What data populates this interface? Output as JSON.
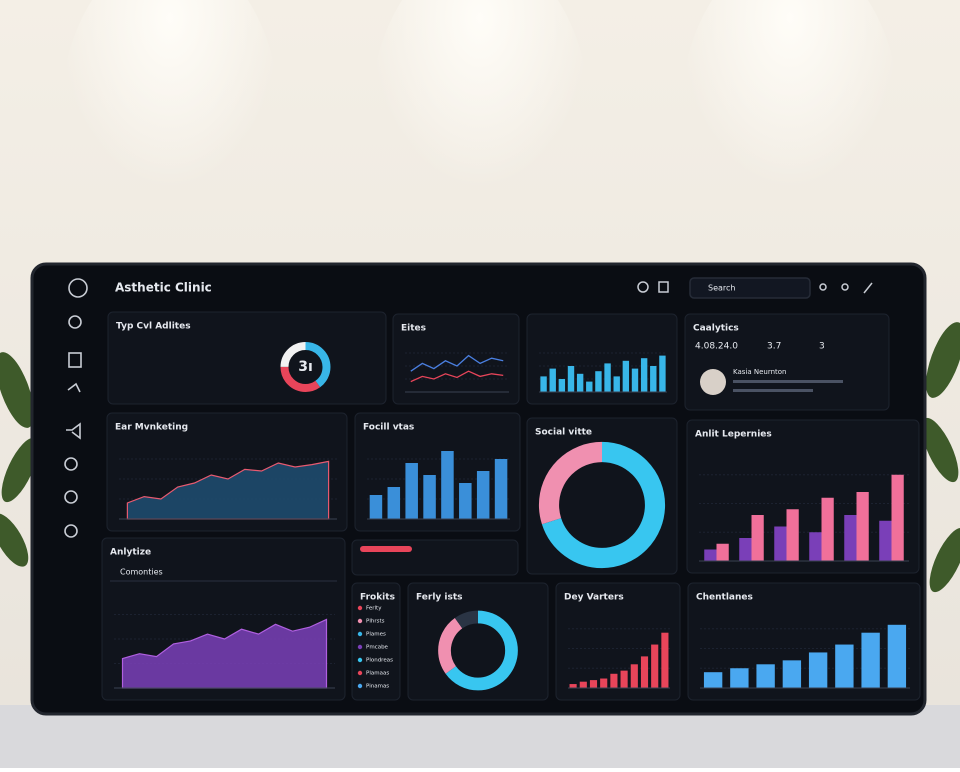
{
  "header": {
    "title": "Asthetic Clinic",
    "search": "Search"
  },
  "panels": [
    {
      "title": "Typ Cvl Adlites",
      "type": "donut",
      "center_label": "3ı",
      "series": [
        {
          "color": "#38b6e8",
          "values": [
            40
          ]
        },
        {
          "color": "#e8455a",
          "values": [
            35
          ]
        },
        {
          "color": "#f2f2f2",
          "values": [
            25
          ]
        }
      ]
    },
    {
      "title": "Eites",
      "type": "line",
      "ylim": [
        0,
        100
      ],
      "series": [
        {
          "color": "#4a7fe0",
          "values": [
            40,
            55,
            45,
            60,
            50,
            70,
            55,
            65,
            60
          ]
        },
        {
          "color": "#e8455a",
          "values": [
            20,
            30,
            25,
            35,
            28,
            40,
            30,
            35,
            32
          ]
        }
      ]
    },
    {
      "type": "bar",
      "ylim": [
        0,
        100
      ],
      "series": [
        {
          "color": "#38b6e8",
          "values": [
            30,
            45,
            25,
            50,
            35,
            20,
            40,
            55,
            30,
            60,
            45,
            65,
            50,
            70
          ]
        }
      ]
    },
    {
      "title": "Caalytics",
      "type": "stats",
      "stats": [
        "4.08.24.0",
        "3.7",
        "3"
      ],
      "name": "Kasia Neurnton"
    },
    {
      "title": "Ear Mvnketing",
      "type": "area",
      "ylim": [
        0,
        100
      ],
      "series": [
        {
          "color": "#1e4e72",
          "values": [
            20,
            28,
            25,
            40,
            45,
            55,
            50,
            62,
            60,
            70,
            65,
            68,
            72
          ]
        }
      ]
    },
    {
      "title": "Focill vtas",
      "type": "bar",
      "ylim": [
        0,
        100
      ],
      "series": [
        {
          "color": "#3a8fd9",
          "values": [
            30,
            40,
            70,
            55,
            85,
            45,
            60,
            75
          ]
        }
      ]
    },
    {
      "title": "Social vitte",
      "type": "donut",
      "series": [
        {
          "color": "#38c6f0",
          "values": [
            70
          ]
        },
        {
          "color": "#f090b0",
          "values": [
            30
          ]
        }
      ]
    },
    {
      "title": "Anlit Lepernies",
      "type": "bar",
      "ylim": [
        0,
        100
      ],
      "series": [
        {
          "color": "#7a3fb8",
          "values": [
            10,
            20,
            30,
            25,
            40,
            35
          ]
        },
        {
          "color": "#f0709a",
          "values": [
            15,
            40,
            45,
            55,
            60,
            75
          ]
        }
      ]
    },
    {
      "title": "Anlytize",
      "subtitle": "Comonties",
      "type": "area",
      "ylim": [
        0,
        100
      ],
      "series": [
        {
          "color": "#7a3fb8",
          "values": [
            30,
            35,
            32,
            45,
            48,
            55,
            50,
            60,
            55,
            65,
            58,
            62,
            70
          ]
        }
      ]
    },
    {
      "title": "Frokits",
      "type": "list",
      "items": [
        "Ferlty",
        "Plhrsts",
        "Plames",
        "Pmcabe",
        "Plondreas",
        "Plamaas",
        "Pinamas"
      ]
    },
    {
      "title": "Ferly ists",
      "type": "donut",
      "series": [
        {
          "color": "#38c6f0",
          "values": [
            65
          ]
        },
        {
          "color": "#f090b0",
          "values": [
            25
          ]
        },
        {
          "color": "#2a3444",
          "values": [
            10
          ]
        }
      ]
    },
    {
      "title": "Dey Varters",
      "type": "bar",
      "ylim": [
        0,
        100
      ],
      "series": [
        {
          "color": "#e8455a",
          "values": [
            5,
            8,
            10,
            12,
            18,
            22,
            30,
            40,
            55,
            70
          ]
        }
      ]
    },
    {
      "title": "Chentlanes",
      "type": "bar",
      "ylim": [
        0,
        100
      ],
      "series": [
        {
          "color": "#4aa8f0",
          "values": [
            20,
            25,
            30,
            35,
            45,
            55,
            70,
            80
          ]
        }
      ]
    }
  ]
}
